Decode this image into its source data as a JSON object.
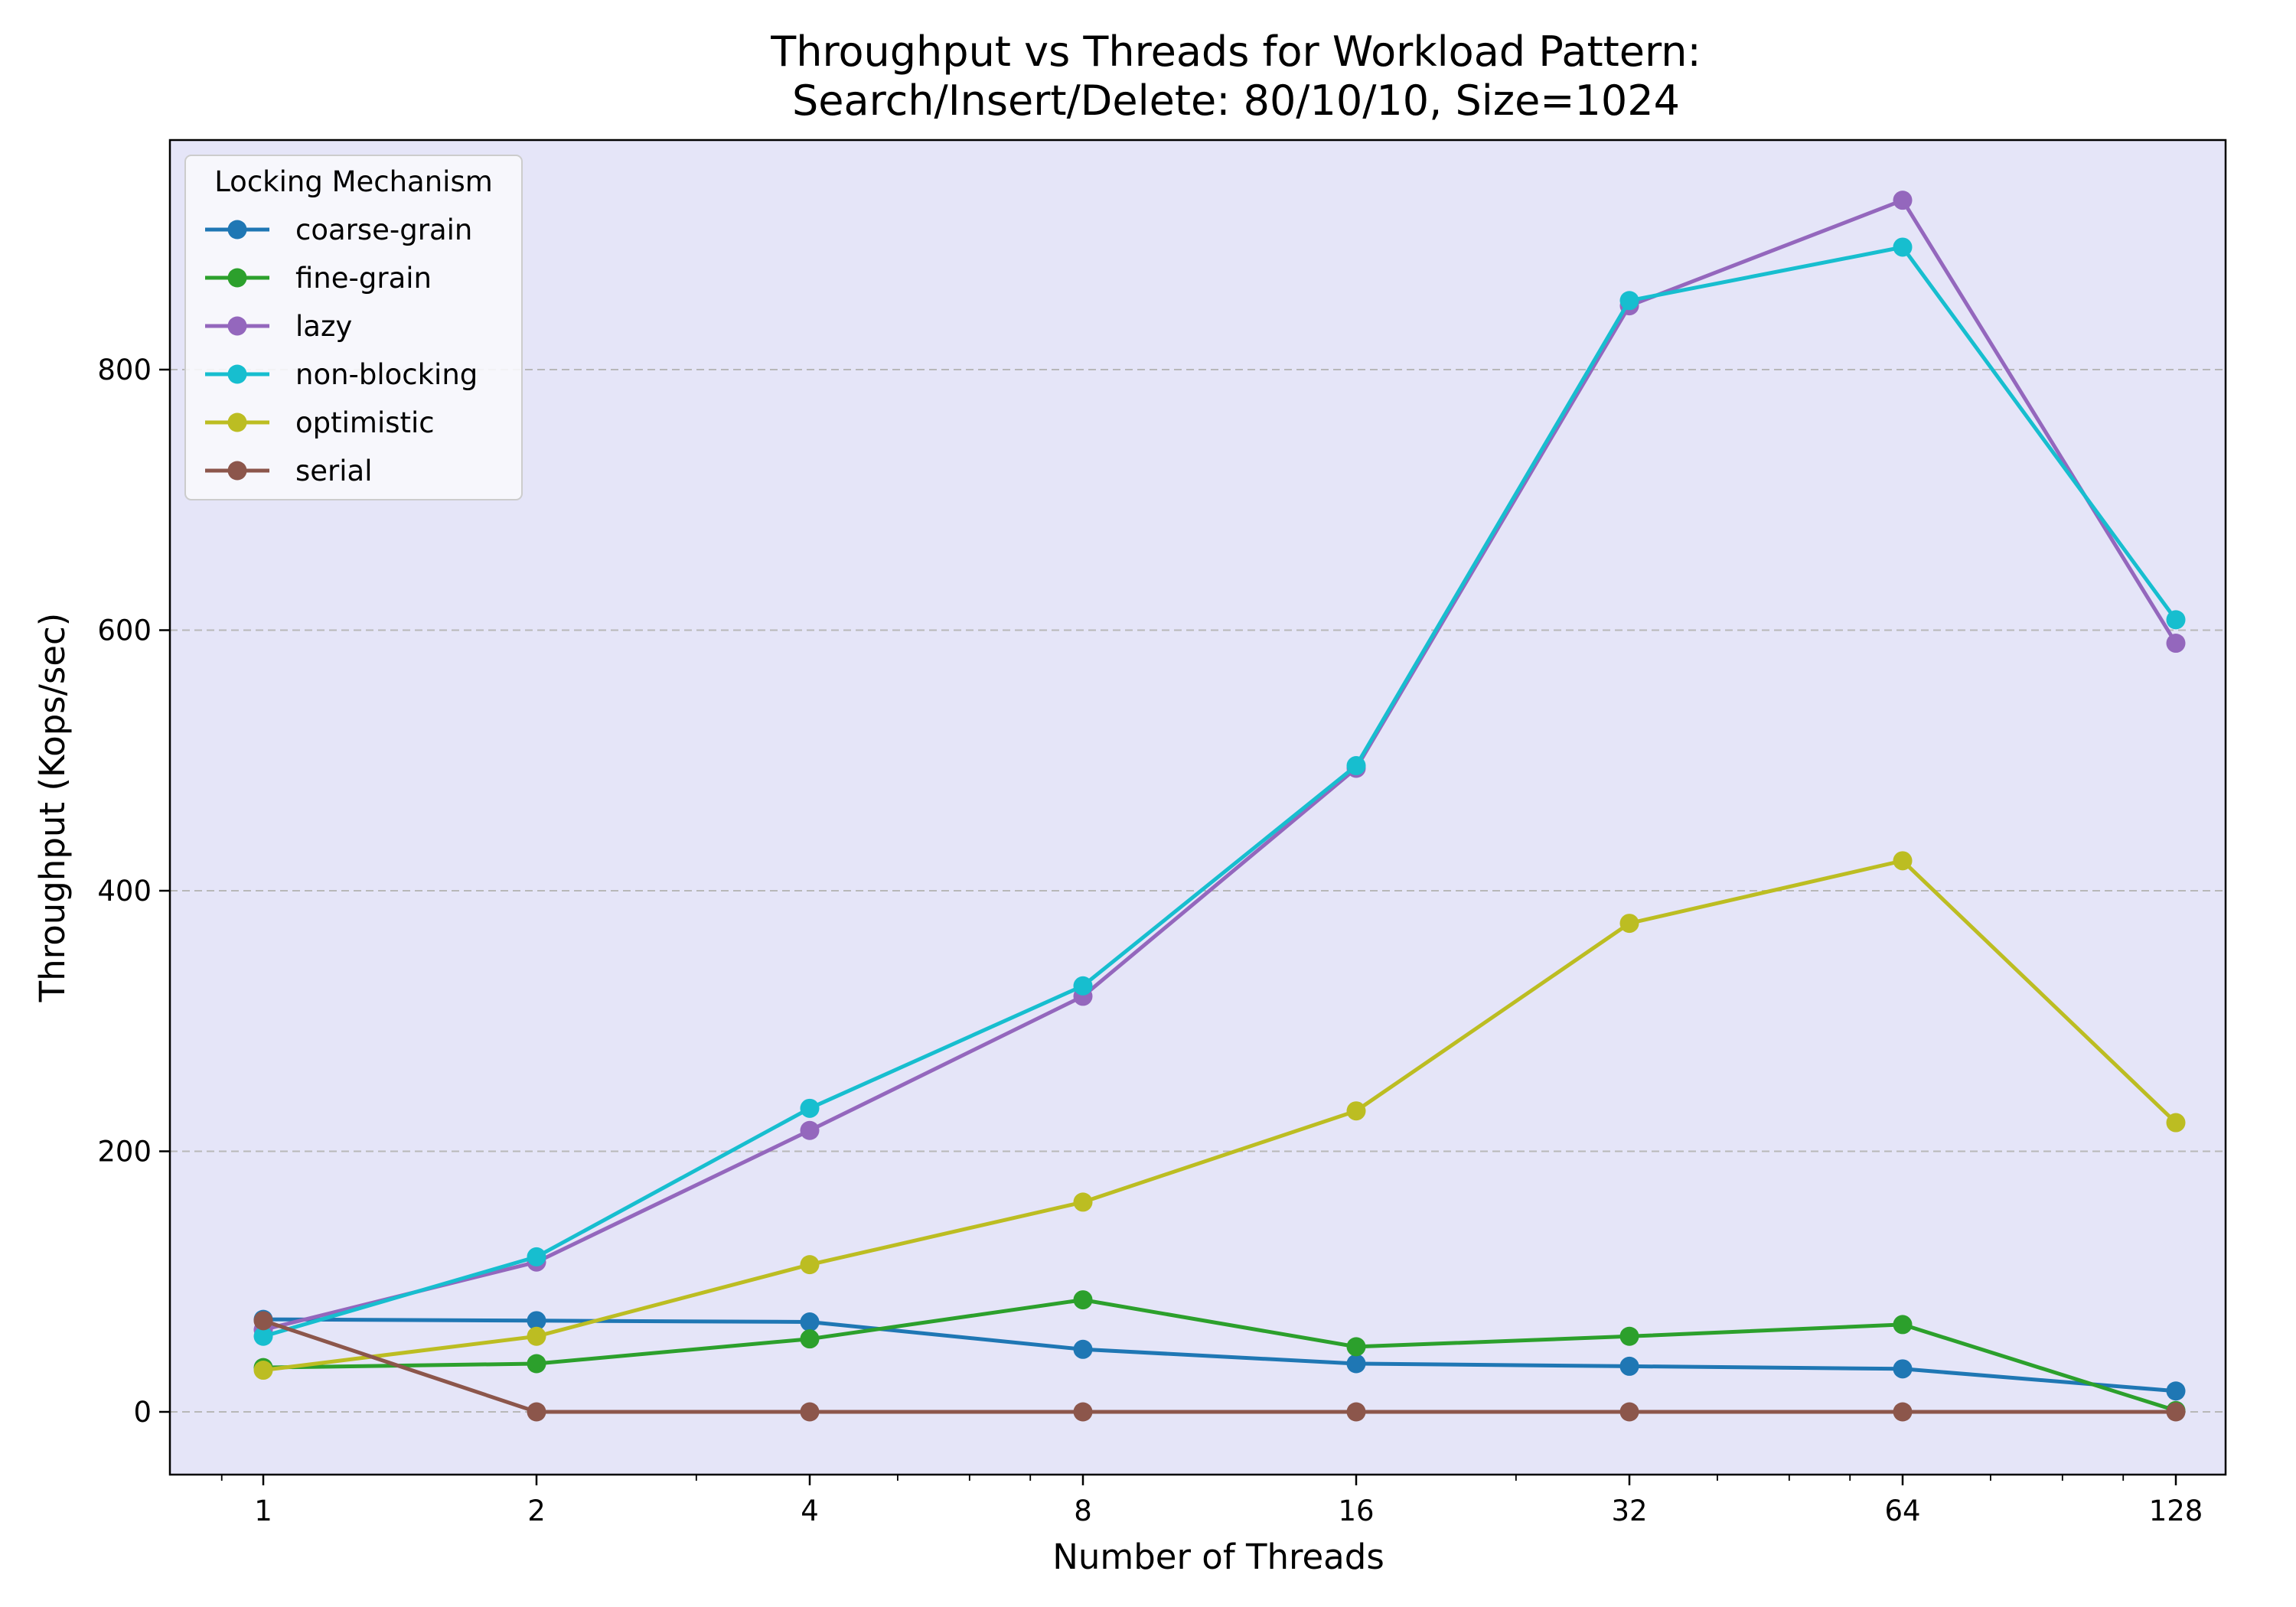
{
  "chart_data": {
    "type": "line",
    "title_line1": "Throughput vs Threads for Workload Pattern:",
    "title_line2": "Search/Insert/Delete: 80/10/10, Size=1024",
    "xlabel": "Number of Threads",
    "ylabel": "Throughput (Kops/sec)",
    "x_scale": "log2",
    "x": [
      1,
      2,
      4,
      8,
      16,
      32,
      64,
      128
    ],
    "x_tick_labels": [
      "1",
      "2",
      "4",
      "8",
      "16",
      "32",
      "64",
      "128"
    ],
    "y_ticks": [
      0,
      200,
      400,
      600,
      800
    ],
    "y_tick_labels": [
      "0",
      "200",
      "400",
      "600",
      "800"
    ],
    "ylim": [
      -48,
      980
    ],
    "grid": "horizontal dashed",
    "plot_background": "#e5e5f8",
    "legend": {
      "title": "Locking Mechanism",
      "placement": "top-left"
    },
    "series": [
      {
        "name": "coarse-grain",
        "color": "#1f77b4",
        "values": [
          71,
          70,
          69,
          48,
          37,
          35,
          33,
          16
        ]
      },
      {
        "name": "fine-grain",
        "color": "#2ca02c",
        "values": [
          34,
          37,
          56,
          86,
          50,
          58,
          67,
          1
        ]
      },
      {
        "name": "lazy",
        "color": "#9467bd",
        "values": [
          63,
          115,
          216,
          319,
          494,
          849,
          930,
          590
        ]
      },
      {
        "name": "non-blocking",
        "color": "#17becf",
        "values": [
          58,
          119,
          233,
          327,
          496,
          853,
          894,
          608
        ]
      },
      {
        "name": "optimistic",
        "color": "#bcbd22",
        "values": [
          32,
          58,
          113,
          161,
          231,
          375,
          423,
          222
        ]
      },
      {
        "name": "serial",
        "color": "#8c564b",
        "values": [
          70,
          0,
          0,
          0,
          0,
          0,
          0,
          0
        ]
      }
    ]
  }
}
